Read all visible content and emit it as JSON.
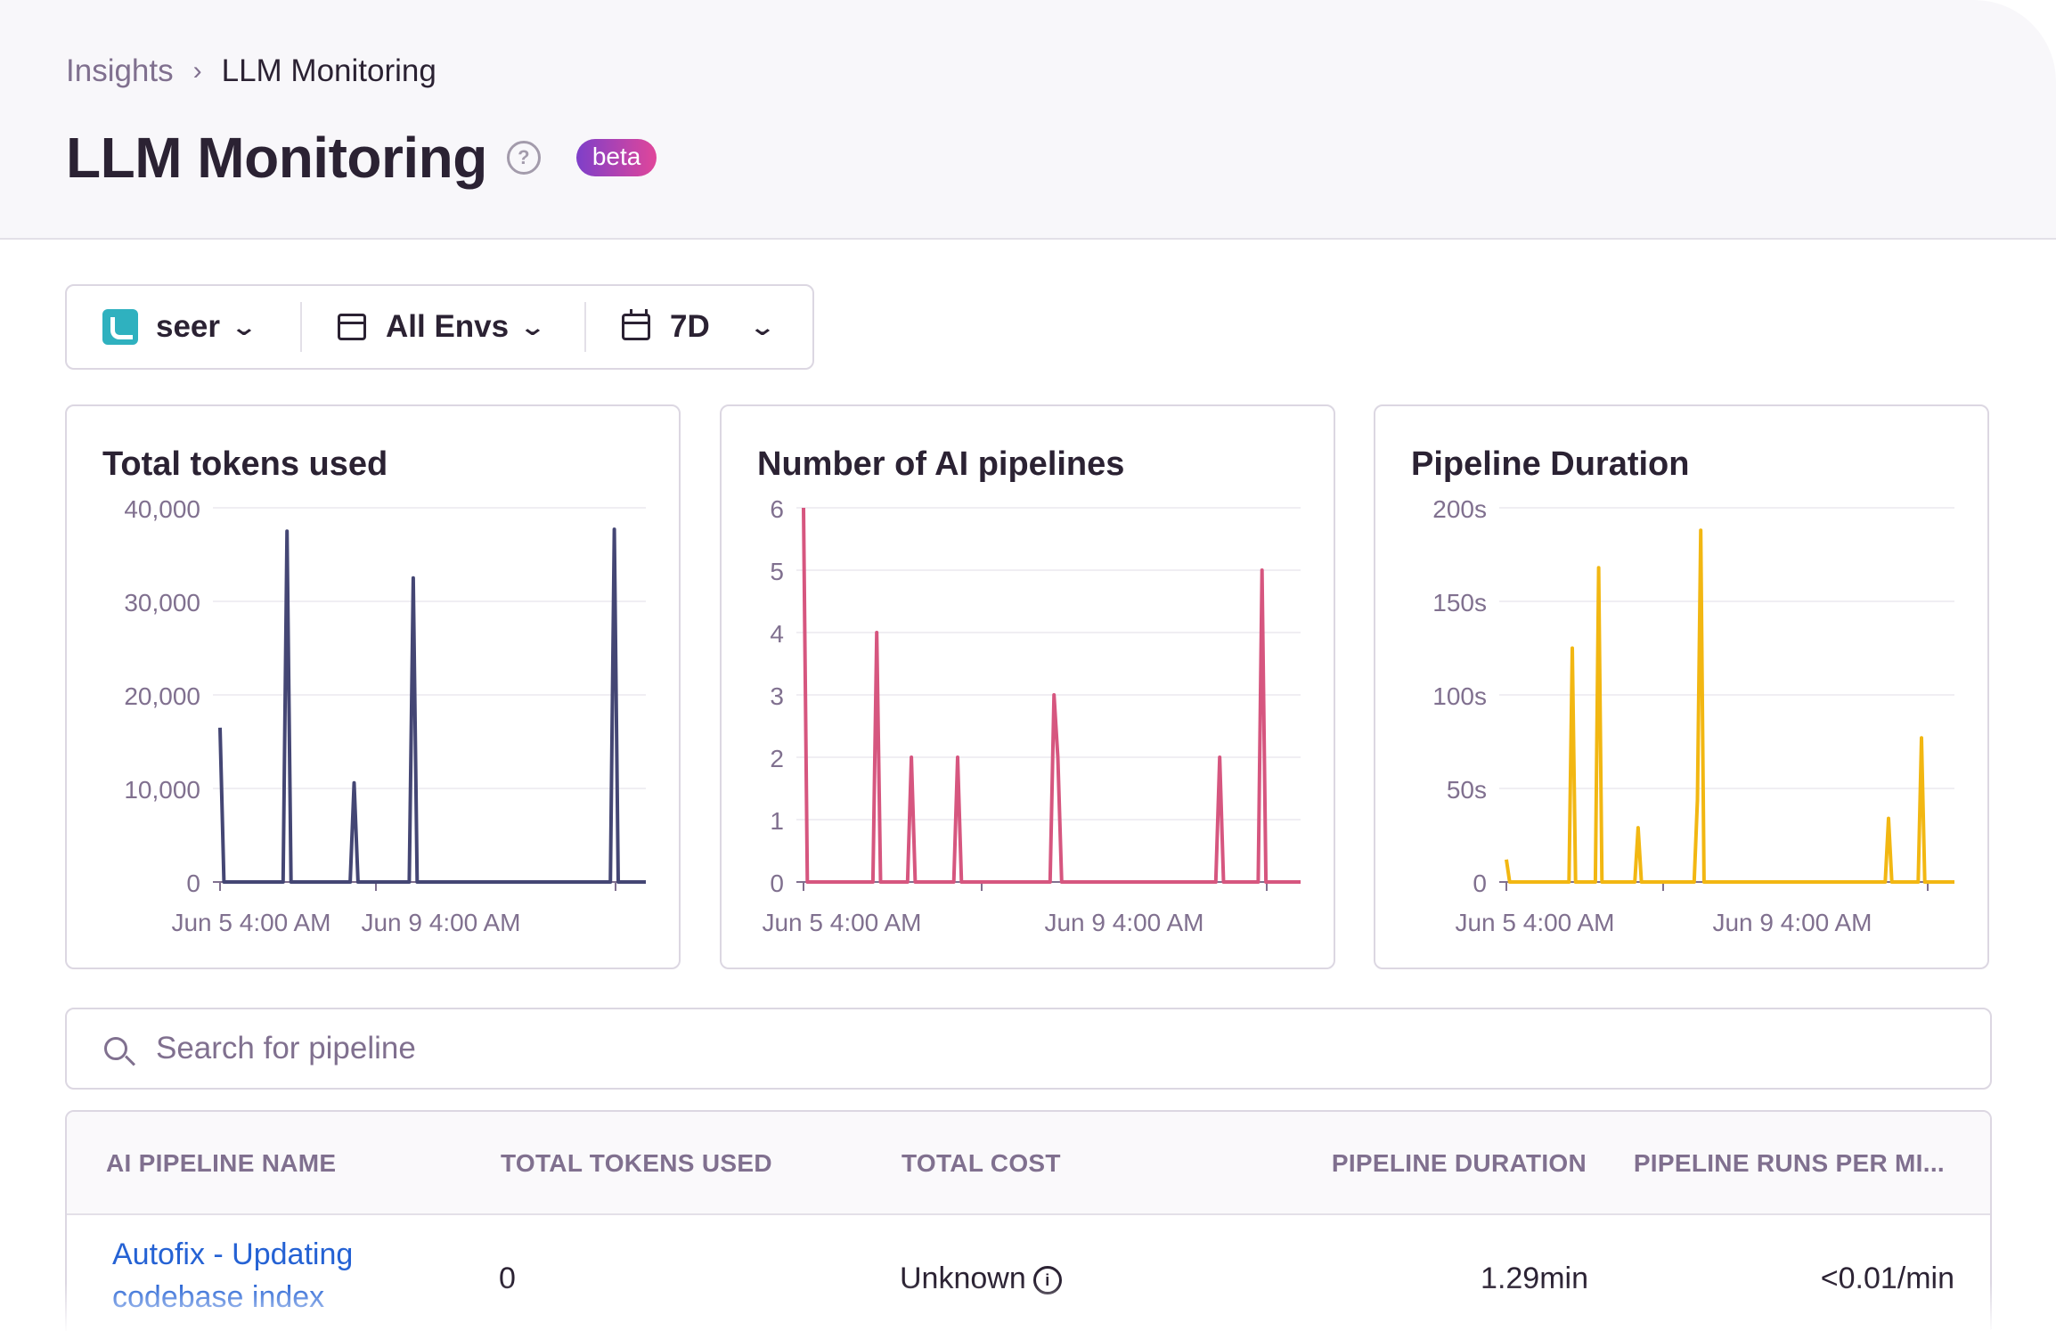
{
  "breadcrumb": {
    "parent": "Insights",
    "current": "LLM Monitoring"
  },
  "page": {
    "title": "LLM Monitoring",
    "help": "?",
    "badge": "beta"
  },
  "filters": {
    "project": "seer",
    "environment": "All Envs",
    "date_range": "7D"
  },
  "search": {
    "placeholder": "Search for pipeline",
    "value": ""
  },
  "colors": {
    "tokens": "#444674",
    "pipelines": "#d6567f",
    "duration": "#f2b712"
  },
  "chart_data": [
    {
      "type": "line",
      "title": "Total tokens used",
      "ylim": [
        0,
        40000
      ],
      "yticks": [
        "40,000",
        "30,000",
        "20,000",
        "10,000",
        "0"
      ],
      "xlabels": [
        "Jun 5 4:00 AM",
        "Jun 9 4:00 AM"
      ],
      "series": [
        {
          "values": [
            16500,
            0,
            0,
            0,
            0,
            0,
            0,
            0,
            0,
            0,
            0,
            0,
            0,
            0,
            0,
            0,
            0,
            37500,
            0,
            0,
            0,
            0,
            0,
            0,
            0,
            0,
            0,
            0,
            0,
            0,
            0,
            0,
            0,
            0,
            10600,
            0,
            0,
            0,
            0,
            0,
            0,
            0,
            0,
            0,
            0,
            0,
            0,
            0,
            0,
            32500,
            0,
            0,
            0,
            0,
            0,
            0,
            0,
            0,
            0,
            0,
            0,
            0,
            0,
            0,
            0,
            0,
            0,
            0,
            0,
            0,
            0,
            0,
            0,
            0,
            0,
            0,
            0,
            0,
            0,
            0,
            0,
            0,
            0,
            0,
            0,
            0,
            0,
            0,
            0,
            0,
            0,
            0,
            0,
            0,
            0,
            0,
            0,
            0,
            0,
            0,
            37700,
            0,
            0,
            0,
            0,
            0,
            0,
            0,
            0
          ]
        }
      ]
    },
    {
      "type": "line",
      "title": "Number of AI pipelines",
      "ylim": [
        0,
        6
      ],
      "yticks": [
        "6",
        "5",
        "4",
        "3",
        "2",
        "1",
        "0"
      ],
      "xlabels": [
        "Jun 5 4:00 AM",
        "Jun 9 4:00 AM"
      ],
      "series": [
        {
          "values": [
            6,
            0,
            0,
            0,
            0,
            0,
            0,
            0,
            0,
            0,
            0,
            0,
            0,
            0,
            0,
            0,
            0,
            0,
            0,
            4,
            0,
            0,
            0,
            0,
            0,
            0,
            0,
            0,
            2,
            0,
            0,
            0,
            0,
            0,
            0,
            0,
            0,
            0,
            0,
            0,
            2,
            0,
            0,
            0,
            0,
            0,
            0,
            0,
            0,
            0,
            0,
            0,
            0,
            0,
            0,
            0,
            0,
            0,
            0,
            0,
            0,
            0,
            0,
            0,
            0,
            3,
            2,
            0,
            0,
            0,
            0,
            0,
            0,
            0,
            0,
            0,
            0,
            0,
            0,
            0,
            0,
            0,
            0,
            0,
            0,
            0,
            0,
            0,
            0,
            0,
            0,
            0,
            0,
            0,
            0,
            0,
            0,
            0,
            0,
            0,
            0,
            0,
            0,
            0,
            0,
            0,
            0,
            0,
            2,
            0,
            0,
            0,
            0,
            0,
            0,
            0,
            0,
            0,
            0,
            5,
            0,
            0,
            0,
            0,
            0,
            0,
            0,
            0,
            0,
            0
          ]
        }
      ]
    },
    {
      "type": "line",
      "title": "Pipeline Duration",
      "ylim": [
        0,
        200
      ],
      "yticks": [
        "200s",
        "150s",
        "100s",
        "50s",
        "0"
      ],
      "xlabels": [
        "Jun 5 4:00 AM",
        "Jun 9 4:00 AM"
      ],
      "series": [
        {
          "values": [
            12,
            0,
            0,
            0,
            0,
            0,
            0,
            0,
            0,
            0,
            0,
            0,
            0,
            0,
            0,
            0,
            0,
            0,
            0,
            0,
            125,
            0,
            0,
            0,
            0,
            0,
            0,
            0,
            168,
            0,
            0,
            0,
            0,
            0,
            0,
            0,
            0,
            0,
            0,
            0,
            29,
            0,
            0,
            0,
            0,
            0,
            0,
            0,
            0,
            0,
            0,
            0,
            0,
            0,
            0,
            0,
            0,
            0,
            44,
            188,
            0,
            0,
            0,
            0,
            0,
            0,
            0,
            0,
            0,
            0,
            0,
            0,
            0,
            0,
            0,
            0,
            0,
            0,
            0,
            0,
            0,
            0,
            0,
            0,
            0,
            0,
            0,
            0,
            0,
            0,
            0,
            0,
            0,
            0,
            0,
            0,
            0,
            0,
            0,
            0,
            0,
            0,
            0,
            0,
            0,
            0,
            0,
            0,
            0,
            0,
            0,
            0,
            0,
            0,
            0,
            0,
            34,
            0,
            0,
            0,
            0,
            0,
            0,
            0,
            0,
            0,
            77,
            0,
            0,
            0,
            0,
            0,
            0,
            0,
            0,
            0,
            0
          ]
        }
      ]
    }
  ],
  "table": {
    "columns": [
      "AI PIPELINE NAME",
      "TOTAL TOKENS USED",
      "TOTAL COST",
      "PIPELINE DURATION",
      "PIPELINE RUNS PER MI..."
    ],
    "rows": [
      {
        "name": "Autofix - Updating codebase index",
        "tokens": "0",
        "cost": "Unknown",
        "duration": "1.29min",
        "runs": "<0.01/min"
      }
    ]
  }
}
